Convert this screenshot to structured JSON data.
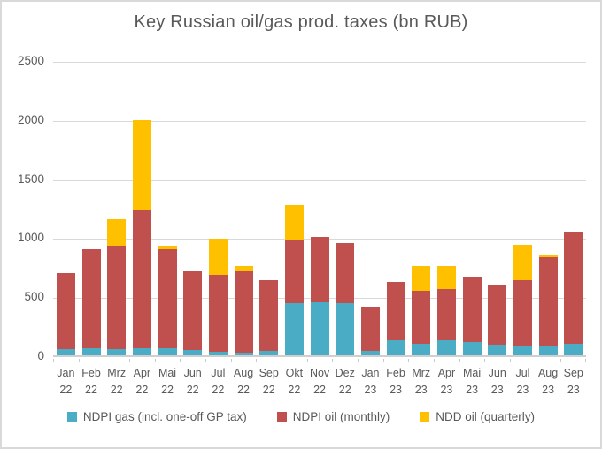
{
  "title": "Key Russian oil/gas prod. taxes (bn RUB)",
  "colors": {
    "gas": "#4BACC6",
    "oil": "#C0504D",
    "ndd": "#FFC000",
    "text": "#595959",
    "gridline": "#D9D9D9",
    "frame_border": "#D9D9D9",
    "background": "#FFFFFF"
  },
  "y_axis": {
    "ticks": [
      2500,
      2000,
      1500,
      1000,
      500,
      0
    ],
    "min": 0,
    "max": 2500
  },
  "legend": [
    {
      "key": "gas",
      "label": "NDPI gas (incl. one-off GP tax)"
    },
    {
      "key": "oil",
      "label": "NDPI oil (monthly)"
    },
    {
      "key": "ndd",
      "label": "NDD oil (quarterly)"
    }
  ],
  "chart_data": {
    "type": "bar",
    "stacked": true,
    "title": "Key Russian oil/gas prod. taxes (bn RUB)",
    "xlabel": "",
    "ylabel": "bn RUB",
    "ylim": [
      0,
      2500
    ],
    "grid": true,
    "legend_position": "bottom",
    "categories": [
      "Jan 22",
      "Feb 22",
      "Mrz 22",
      "Apr 22",
      "Mai 22",
      "Jun 22",
      "Jul 22",
      "Aug 22",
      "Sep 22",
      "Okt 22",
      "Nov 22",
      "Dez 22",
      "Jan 23",
      "Feb 23",
      "Mrz 23",
      "Apr 23",
      "Mai 23",
      "Jun 23",
      "Jul 23",
      "Aug 23",
      "Sep 23"
    ],
    "series": [
      {
        "name": "NDPI gas (incl. one-off GP tax)",
        "key": "gas",
        "color": "#4BACC6",
        "values": [
          55,
          60,
          55,
          60,
          60,
          45,
          30,
          25,
          40,
          440,
          450,
          445,
          40,
          125,
          100,
          125,
          110,
          90,
          85,
          75,
          100
        ]
      },
      {
        "name": "NDPI oil (monthly)",
        "key": "oil",
        "color": "#C0504D",
        "values": [
          640,
          835,
          870,
          1170,
          835,
          665,
          650,
          690,
          595,
          540,
          550,
          505,
          370,
          495,
          445,
          440,
          560,
          510,
          550,
          755,
          945
        ]
      },
      {
        "name": "NDD oil (quarterly)",
        "key": "ndd",
        "color": "#FFC000",
        "values": [
          0,
          0,
          230,
          760,
          30,
          0,
          305,
          45,
          0,
          290,
          0,
          0,
          0,
          0,
          210,
          190,
          0,
          0,
          300,
          15,
          0
        ]
      }
    ],
    "totals": [
      695,
      895,
      1155,
      1990,
      925,
      710,
      985,
      760,
      635,
      1270,
      1000,
      950,
      410,
      620,
      755,
      755,
      670,
      600,
      935,
      845,
      1045
    ]
  }
}
